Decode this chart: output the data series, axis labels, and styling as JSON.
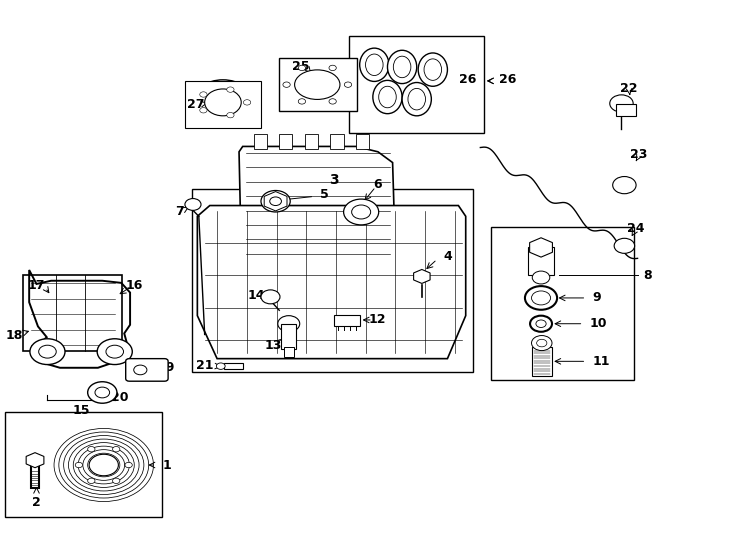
{
  "bg_color": "#ffffff",
  "line_color": "#000000",
  "figsize": [
    7.34,
    5.4
  ],
  "dpi": 100,
  "boxes": {
    "pulley": [
      0.005,
      0.04,
      0.215,
      0.195
    ],
    "oilpan": [
      0.26,
      0.31,
      0.385,
      0.34
    ],
    "filter": [
      0.67,
      0.295,
      0.195,
      0.285
    ],
    "gasket": [
      0.475,
      0.755,
      0.185,
      0.18
    ]
  }
}
